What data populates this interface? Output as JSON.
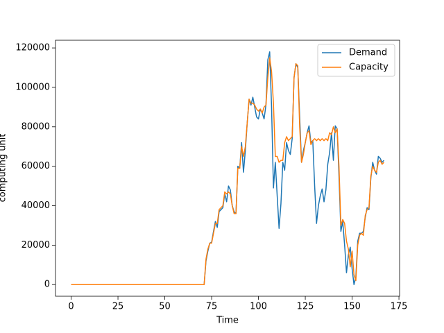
{
  "chart_data": {
    "type": "line",
    "xlabel": "Time",
    "ylabel": "computing unit",
    "x": [
      0,
      1,
      2,
      3,
      4,
      5,
      6,
      7,
      8,
      9,
      10,
      11,
      12,
      13,
      14,
      15,
      16,
      17,
      18,
      19,
      20,
      21,
      22,
      23,
      24,
      25,
      26,
      27,
      28,
      29,
      30,
      31,
      32,
      33,
      34,
      35,
      36,
      37,
      38,
      39,
      40,
      41,
      42,
      43,
      44,
      45,
      46,
      47,
      48,
      49,
      50,
      51,
      52,
      53,
      54,
      55,
      56,
      57,
      58,
      59,
      60,
      61,
      62,
      63,
      64,
      65,
      66,
      67,
      68,
      69,
      70,
      71,
      72,
      73,
      74,
      75,
      76,
      77,
      78,
      79,
      80,
      81,
      82,
      83,
      84,
      85,
      86,
      87,
      88,
      89,
      90,
      91,
      92,
      93,
      94,
      95,
      96,
      97,
      98,
      99,
      100,
      101,
      102,
      103,
      104,
      105,
      106,
      107,
      108,
      109,
      110,
      111,
      112,
      113,
      114,
      115,
      116,
      117,
      118,
      119,
      120,
      121,
      122,
      123,
      124,
      125,
      126,
      127,
      128,
      129,
      130,
      131,
      132,
      133,
      134,
      135,
      136,
      137,
      138,
      139,
      140,
      141,
      142,
      143,
      144,
      145,
      146,
      147,
      148,
      149,
      150,
      151,
      152,
      153,
      154,
      155,
      156,
      157,
      158,
      159,
      160,
      161,
      162,
      163,
      164,
      165,
      166,
      167
    ],
    "series": [
      {
        "name": "Demand",
        "color": "#1f77b4",
        "values": [
          0,
          0,
          0,
          0,
          0,
          0,
          0,
          0,
          0,
          0,
          0,
          0,
          0,
          0,
          0,
          0,
          0,
          0,
          0,
          0,
          0,
          0,
          0,
          0,
          0,
          0,
          0,
          0,
          0,
          0,
          0,
          0,
          0,
          0,
          0,
          0,
          0,
          0,
          0,
          0,
          0,
          0,
          0,
          0,
          0,
          0,
          0,
          0,
          0,
          0,
          0,
          0,
          0,
          0,
          0,
          0,
          0,
          0,
          0,
          0,
          0,
          0,
          0,
          0,
          0,
          0,
          0,
          0,
          0,
          0,
          0,
          0,
          12000,
          17000,
          21000,
          21500,
          27000,
          32000,
          29000,
          37000,
          38000,
          39000,
          46000,
          42000,
          50000,
          48000,
          40000,
          37000,
          36000,
          60000,
          59000,
          72000,
          57000,
          68000,
          82000,
          94000,
          91000,
          95000,
          90000,
          85000,
          84000,
          89000,
          87000,
          84000,
          91000,
          114000,
          118000,
          90000,
          49000,
          62000,
          45000,
          28500,
          41000,
          62000,
          58000,
          72000,
          68000,
          66000,
          74000,
          105000,
          112000,
          110000,
          85000,
          62000,
          68000,
          72000,
          77000,
          80500,
          72000,
          73000,
          50000,
          31000,
          40000,
          45000,
          48500,
          42000,
          48000,
          61000,
          67000,
          77000,
          63000,
          80500,
          79000,
          55000,
          27000,
          32000,
          20000,
          6000,
          15000,
          19000,
          8000,
          0,
          4000,
          22000,
          26000,
          26000,
          27000,
          34000,
          39000,
          38000,
          54000,
          62000,
          58000,
          56000,
          65000,
          64000,
          62000,
          63000
        ]
      },
      {
        "name": "Capacity",
        "color": "#ff7f0e",
        "values": [
          0,
          0,
          0,
          0,
          0,
          0,
          0,
          0,
          0,
          0,
          0,
          0,
          0,
          0,
          0,
          0,
          0,
          0,
          0,
          0,
          0,
          0,
          0,
          0,
          0,
          0,
          0,
          0,
          0,
          0,
          0,
          0,
          0,
          0,
          0,
          0,
          0,
          0,
          0,
          0,
          0,
          0,
          0,
          0,
          0,
          0,
          0,
          0,
          0,
          0,
          0,
          0,
          0,
          0,
          0,
          0,
          0,
          0,
          0,
          0,
          0,
          0,
          0,
          0,
          0,
          0,
          0,
          0,
          0,
          0,
          0,
          0,
          13000,
          18000,
          21000,
          21000,
          26000,
          31000,
          31000,
          38000,
          39000,
          40000,
          47000,
          46000,
          47000,
          46000,
          40000,
          36000,
          36000,
          59000,
          59000,
          70000,
          65000,
          70000,
          82000,
          94000,
          92000,
          92000,
          91000,
          89000,
          88000,
          89000,
          87000,
          90000,
          91000,
          105000,
          115000,
          108000,
          92000,
          65000,
          65000,
          62000,
          63000,
          63000,
          72000,
          75000,
          73000,
          74000,
          75000,
          105000,
          112000,
          111000,
          80000,
          62000,
          66000,
          72000,
          77000,
          78000,
          71000,
          73000,
          74000,
          73000,
          74000,
          73000,
          74000,
          73000,
          74000,
          73000,
          77000,
          76000,
          80000,
          77000,
          79000,
          60000,
          30000,
          33000,
          31000,
          22000,
          18000,
          9000,
          17000,
          5000,
          2000,
          20000,
          25000,
          26000,
          25000,
          35000,
          38000,
          39000,
          55000,
          60000,
          58000,
          57000,
          62000,
          63000,
          61000,
          62000
        ]
      }
    ],
    "xlim": [
      -8.35,
      175.35
    ],
    "xticks": [
      0,
      25,
      50,
      75,
      100,
      125,
      150,
      175
    ],
    "ylim": [
      -5900,
      123900
    ],
    "yticks": [
      0,
      20000,
      40000,
      60000,
      80000,
      100000,
      120000
    ],
    "legend": "upper right",
    "grid": false
  }
}
